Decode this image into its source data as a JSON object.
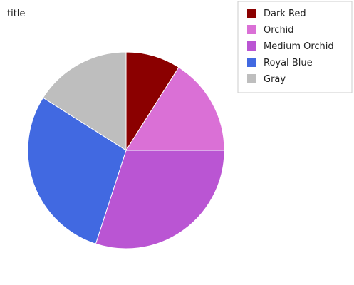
{
  "chart_data": {
    "type": "pie",
    "title": "title",
    "categories": [
      "Dark Red",
      "Orchid",
      "Medium Orchid",
      "Royal Blue",
      "Gray"
    ],
    "values": [
      9,
      16,
      30,
      29,
      16
    ],
    "colors": [
      "#8b0000",
      "#da70d6",
      "#ba55d3",
      "#4169e1",
      "#bebebe"
    ],
    "legend_position": "top-right"
  }
}
